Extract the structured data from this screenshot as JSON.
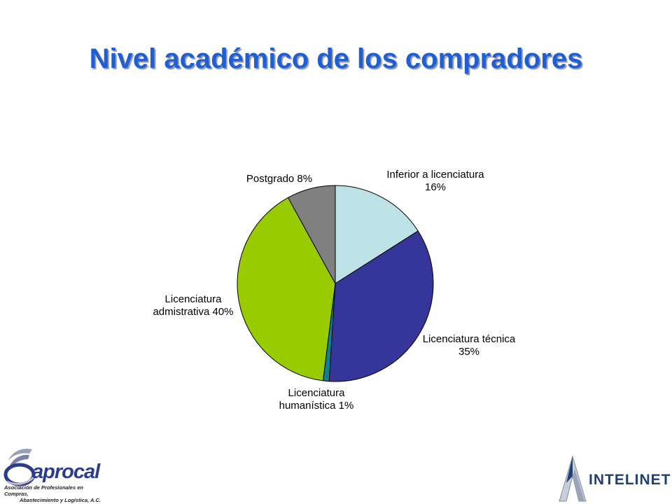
{
  "title": "Nivel académico de los compradores",
  "chart_data": {
    "type": "pie",
    "title": "Nivel académico de los compradores",
    "slices": [
      {
        "name": "Inferior a licenciatura",
        "value": 16,
        "label_lines": [
          "Inferior a licenciatura",
          "16%"
        ],
        "color": "#bde2e5"
      },
      {
        "name": "Licenciatura técnica",
        "value": 35,
        "label_lines": [
          "Licenciatura técnica",
          "35%"
        ],
        "color": "#35359a"
      },
      {
        "name": "Licenciatura humanística",
        "value": 1,
        "label_lines": [
          "Licenciatura",
          "humanística 1%"
        ],
        "color": "#12808a"
      },
      {
        "name": "Licenciatura admistrativa",
        "value": 40,
        "label_lines": [
          "Licenciatura",
          "admistrativa 40%"
        ],
        "color": "#99cc00"
      },
      {
        "name": "Postgrado",
        "value": 8,
        "label_lines": [
          "Postgrado 8%"
        ],
        "color": "#808080"
      }
    ],
    "start_angle": "12 o'clock",
    "direction": "clockwise",
    "legend": "none"
  },
  "logos": {
    "left": {
      "name": "aprocal",
      "subtitle_lines": [
        "Asociación de Profesionales en Compras,",
        "Abastecimiento y Logística, A.C."
      ],
      "color": "#2b3c8f"
    },
    "right": {
      "name": "INTELINET",
      "color": "#1d3f7a"
    }
  }
}
